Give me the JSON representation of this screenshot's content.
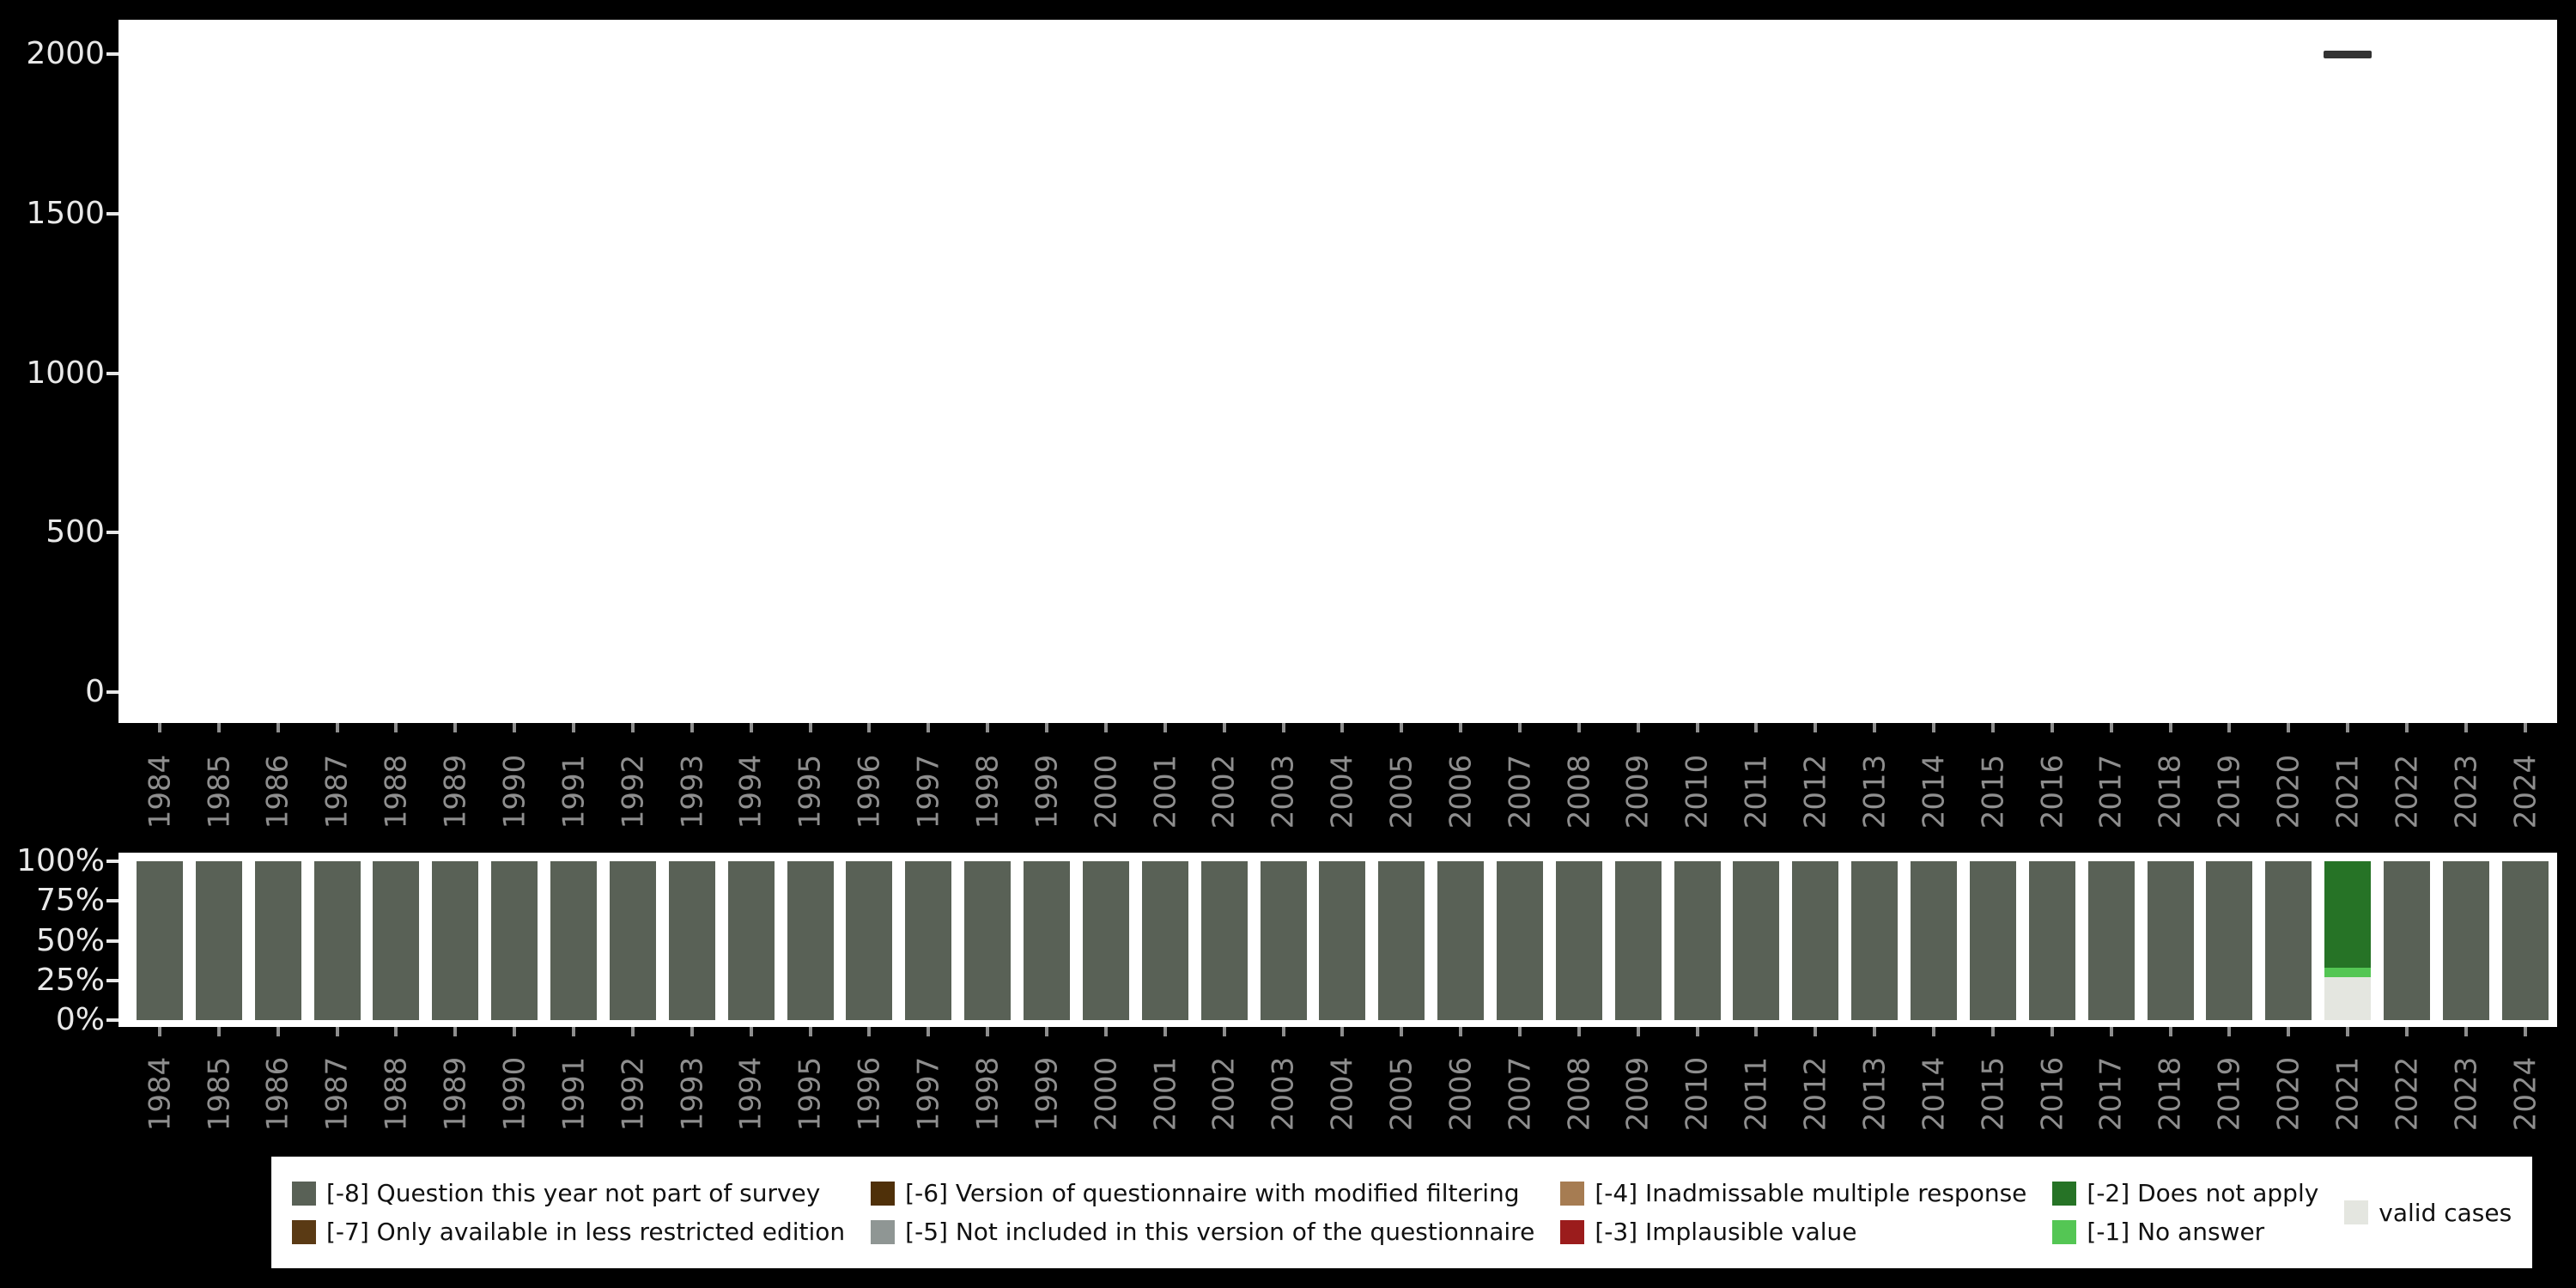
{
  "page": {
    "background": "#000000",
    "panel_background": "#ffffff"
  },
  "colors": {
    "-8": "#596156",
    "-7": "#5a3a14",
    "-6": "#4f3009",
    "-5": "#8f9694",
    "-4": "#a67c52",
    "-3": "#9b1c1c",
    "-2": "#267326",
    "-1": "#54c654",
    "valid": "#e4e6e0",
    "point": "#333333",
    "axis_text_light": "#e8e8e8",
    "axis_text_gray": "#8e8e8e"
  },
  "chart_data": [
    {
      "type": "scatter",
      "title": "",
      "xlabel": "",
      "ylabel": "",
      "x_years": [
        1984,
        1985,
        1986,
        1987,
        1988,
        1989,
        1990,
        1991,
        1992,
        1993,
        1994,
        1995,
        1996,
        1997,
        1998,
        1999,
        2000,
        2001,
        2002,
        2003,
        2004,
        2005,
        2006,
        2007,
        2008,
        2009,
        2010,
        2011,
        2012,
        2013,
        2014,
        2015,
        2016,
        2017,
        2018,
        2019,
        2020,
        2021,
        2022,
        2023,
        2024
      ],
      "yticks": [
        0,
        500,
        1000,
        1500,
        2000
      ],
      "ylim": [
        0,
        2100
      ],
      "grid": false,
      "legend_position": "none",
      "points": [
        {
          "x": 2021,
          "y": 2000,
          "marker": "dash"
        }
      ]
    },
    {
      "type": "bar",
      "stacked": true,
      "units": "percent",
      "title": "",
      "xlabel": "",
      "ylabel": "",
      "categories": [
        1984,
        1985,
        1986,
        1987,
        1988,
        1989,
        1990,
        1991,
        1992,
        1993,
        1994,
        1995,
        1996,
        1997,
        1998,
        1999,
        2000,
        2001,
        2002,
        2003,
        2004,
        2005,
        2006,
        2007,
        2008,
        2009,
        2010,
        2011,
        2012,
        2013,
        2014,
        2015,
        2016,
        2017,
        2018,
        2019,
        2020,
        2021,
        2022,
        2023,
        2024
      ],
      "yticks": [
        {
          "pct": 0,
          "label": "0%"
        },
        {
          "pct": 25,
          "label": "25%"
        },
        {
          "pct": 50,
          "label": "50%"
        },
        {
          "pct": 75,
          "label": "75%"
        },
        {
          "pct": 100,
          "label": "100%"
        }
      ],
      "ylim_percent": [
        0,
        100
      ],
      "grid": false,
      "legend_position": "bottom",
      "segments_default": [
        {
          "key": "-8",
          "pct": 100
        }
      ],
      "segments_overrides": {
        "2021": [
          {
            "key": "-2",
            "pct": 67
          },
          {
            "key": "-1",
            "pct": 6
          },
          {
            "key": "valid",
            "pct": 27
          }
        ]
      }
    }
  ],
  "legend": {
    "items": [
      {
        "key": "-8",
        "label": "[-8] Question this year not part of survey"
      },
      {
        "key": "-7",
        "label": "[-7] Only available in less restricted edition"
      },
      {
        "key": "-6",
        "label": "[-6] Version of questionnaire with modified filtering"
      },
      {
        "key": "-5",
        "label": "[-5] Not included in this version of the questionnaire"
      },
      {
        "key": "-4",
        "label": "[-4] Inadmissable multiple response"
      },
      {
        "key": "-3",
        "label": "[-3] Implausible value"
      },
      {
        "key": "-2",
        "label": "[-2] Does not apply"
      },
      {
        "key": "-1",
        "label": "[-1] No answer"
      },
      {
        "key": "valid",
        "label": "valid cases"
      }
    ]
  }
}
